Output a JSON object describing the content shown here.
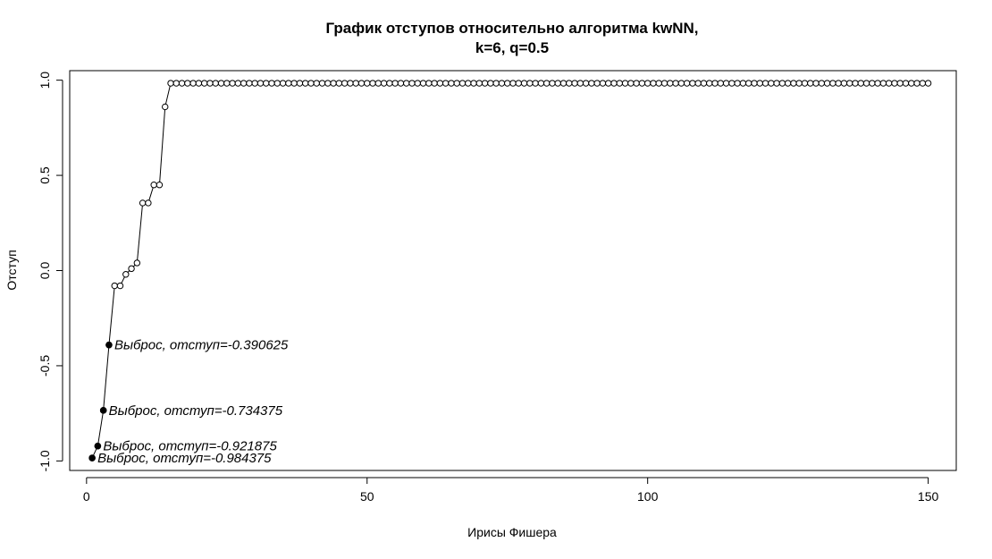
{
  "chart_data": {
    "type": "line",
    "title_lines": [
      "График отступов относительно алгоритма kwNN,",
      "k=6, q=0.5"
    ],
    "xlabel": "Ирисы Фишера",
    "ylabel": "Отступ",
    "xlim": [
      -3,
      155
    ],
    "ylim": [
      -1.05,
      1.05
    ],
    "x_ticks": [
      0,
      50,
      100,
      150
    ],
    "x_tick_labels": [
      "0",
      "50",
      "100",
      "150"
    ],
    "y_ticks": [
      -1.0,
      -0.5,
      0.0,
      0.5,
      1.0
    ],
    "y_tick_labels": [
      "-1.0",
      "-0.5",
      "0.0",
      "0.5",
      "1.0"
    ],
    "grid": false,
    "series": [
      {
        "values": [
          -0.984375,
          -0.921875,
          -0.734375,
          -0.390625,
          -0.08,
          -0.08,
          -0.02,
          0.01,
          0.04,
          0.355,
          0.355,
          0.45,
          0.45,
          0.86,
          0.984,
          0.984,
          0.984,
          0.984,
          0.984,
          0.984,
          0.984,
          0.984,
          0.984,
          0.984,
          0.984,
          0.984,
          0.984,
          0.984,
          0.984,
          0.984,
          0.984,
          0.984,
          0.984,
          0.984,
          0.984,
          0.984,
          0.984,
          0.984,
          0.984,
          0.984,
          0.984,
          0.984,
          0.984,
          0.984,
          0.984,
          0.984,
          0.984,
          0.984,
          0.984,
          0.984,
          0.984,
          0.984,
          0.984,
          0.984,
          0.984,
          0.984,
          0.984,
          0.984,
          0.984,
          0.984,
          0.984,
          0.984,
          0.984,
          0.984,
          0.984,
          0.984,
          0.984,
          0.984,
          0.984,
          0.984,
          0.984,
          0.984,
          0.984,
          0.984,
          0.984,
          0.984,
          0.984,
          0.984,
          0.984,
          0.984,
          0.984,
          0.984,
          0.984,
          0.984,
          0.984,
          0.984,
          0.984,
          0.984,
          0.984,
          0.984,
          0.984,
          0.984,
          0.984,
          0.984,
          0.984,
          0.984,
          0.984,
          0.984,
          0.984,
          0.984,
          0.984,
          0.984,
          0.984,
          0.984,
          0.984,
          0.984,
          0.984,
          0.984,
          0.984,
          0.984,
          0.984,
          0.984,
          0.984,
          0.984,
          0.984,
          0.984,
          0.984,
          0.984,
          0.984,
          0.984,
          0.984,
          0.984,
          0.984,
          0.984,
          0.984,
          0.984,
          0.984,
          0.984,
          0.984,
          0.984,
          0.984,
          0.984,
          0.984,
          0.984,
          0.984,
          0.984,
          0.984,
          0.984,
          0.984,
          0.984,
          0.984,
          0.984,
          0.984,
          0.984,
          0.984,
          0.984,
          0.984,
          0.984,
          0.984,
          0.984
        ]
      }
    ],
    "outliers": [
      {
        "x": 1,
        "y": -0.984375,
        "label": "Выброс, отступ=-0.984375"
      },
      {
        "x": 2,
        "y": -0.921875,
        "label": "Выброс, отступ=-0.921875"
      },
      {
        "x": 3,
        "y": -0.734375,
        "label": "Выброс, отступ=-0.734375"
      },
      {
        "x": 4,
        "y": -0.390625,
        "label": "Выброс, отступ=-0.390625"
      }
    ]
  }
}
